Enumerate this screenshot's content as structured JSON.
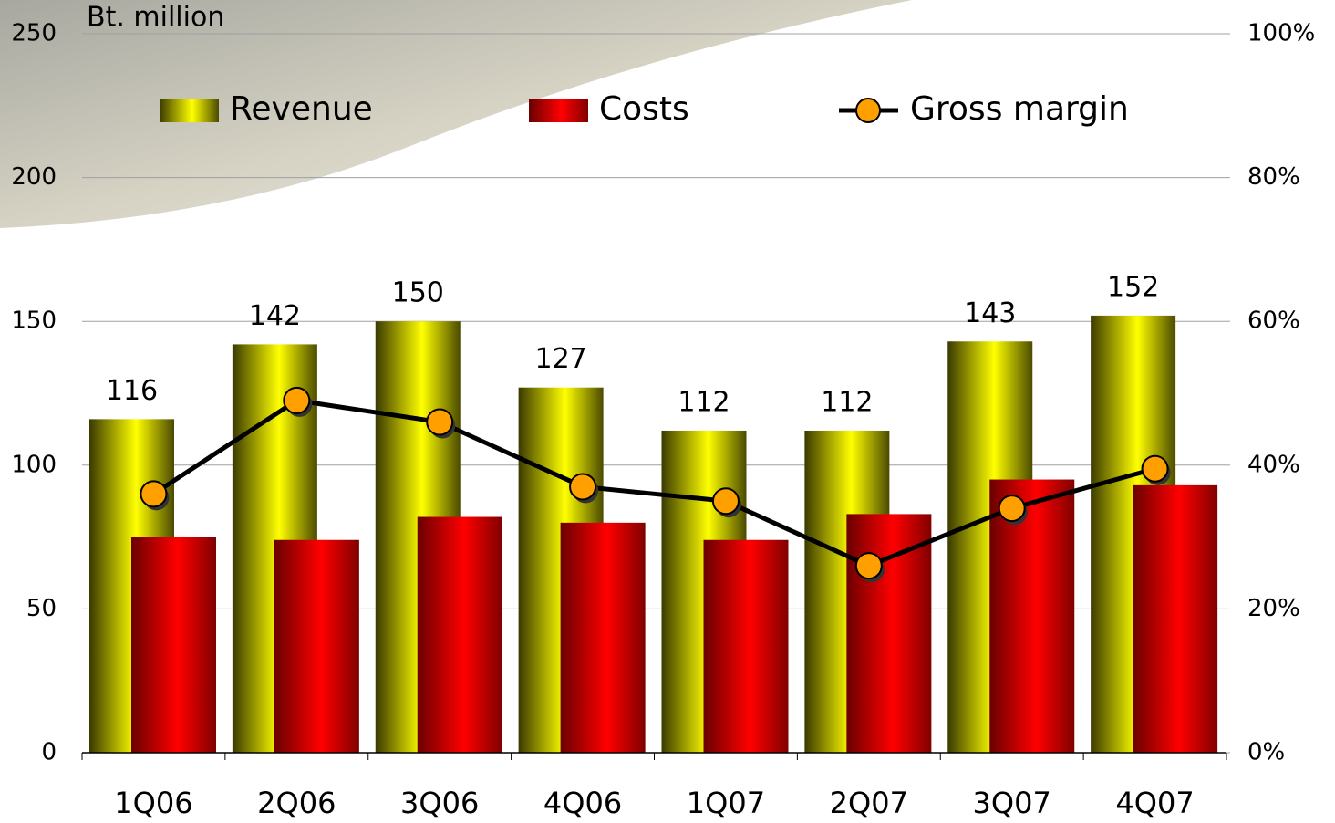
{
  "chart_data": {
    "type": "bar",
    "y_axis_label": "Bt. million",
    "categories": [
      "1Q06",
      "2Q06",
      "3Q06",
      "4Q06",
      "1Q07",
      "2Q07",
      "3Q07",
      "4Q07"
    ],
    "series": [
      {
        "name": "Revenue",
        "color": "#ffff00",
        "values": [
          116,
          142,
          150,
          127,
          112,
          112,
          143,
          152
        ]
      },
      {
        "name": "Costs",
        "color": "#ff0000",
        "values": [
          75,
          74,
          82,
          80,
          74,
          83,
          95,
          93
        ]
      },
      {
        "name": "Gross margin",
        "color": "#ffa000",
        "type": "line",
        "axis": "y2",
        "values": [
          36,
          49,
          46,
          37,
          35,
          26,
          34,
          39.5
        ]
      }
    ],
    "ylim": [
      0,
      250
    ],
    "yticks": [
      0,
      50,
      100,
      150,
      200,
      250
    ],
    "y2lim": [
      0,
      100
    ],
    "y2ticks": [
      {
        "value": 0,
        "label": "0%"
      },
      {
        "value": 20,
        "label": "20%"
      },
      {
        "value": 40,
        "label": "40%"
      },
      {
        "value": 60,
        "label": "60%"
      },
      {
        "value": 80,
        "label": "80%"
      },
      {
        "value": 100,
        "label": "100%"
      }
    ],
    "grid": true
  }
}
